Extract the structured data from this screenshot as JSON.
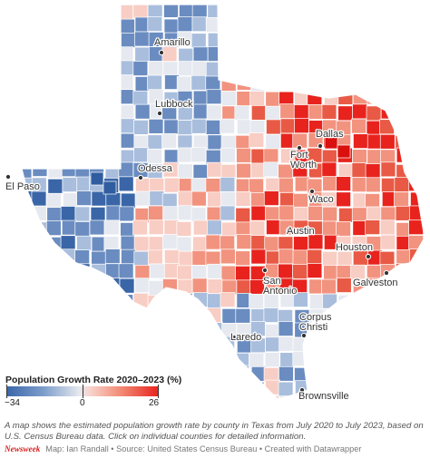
{
  "map": {
    "state": "Texas",
    "cities": [
      {
        "name": "Amarillo"
      },
      {
        "name": "Lubbock"
      },
      {
        "name": "Odessa"
      },
      {
        "name": "El Paso"
      },
      {
        "name": "Dallas"
      },
      {
        "name": "Fort Worth"
      },
      {
        "name": "Waco"
      },
      {
        "name": "Austin"
      },
      {
        "name": "San Antonio"
      },
      {
        "name": "Houston"
      },
      {
        "name": "Galveston"
      },
      {
        "name": "Corpus Christi"
      },
      {
        "name": "Laredo"
      },
      {
        "name": "Brownsville"
      }
    ],
    "colors": {
      "strong_decline": "#3a66a8",
      "decline": "#7f9fcc",
      "neutral": "#e6e9ef",
      "growth": "#f28b76",
      "strong_growth": "#e8231d"
    }
  },
  "legend": {
    "title": "Population Growth Rate 2020–2023 (%)",
    "min": "−34",
    "mid": "0",
    "max": "26"
  },
  "caption": "A map shows the estimated population growth rate by county in Texas from July 2020 to July 2023, based on U.S. Census Bureau data. Click on individual counties for detailed information.",
  "footer": {
    "brand": "Newsweek",
    "credits": "Map: Ian Randall • Source: United States Census Bureau • Created with Datawrapper"
  }
}
